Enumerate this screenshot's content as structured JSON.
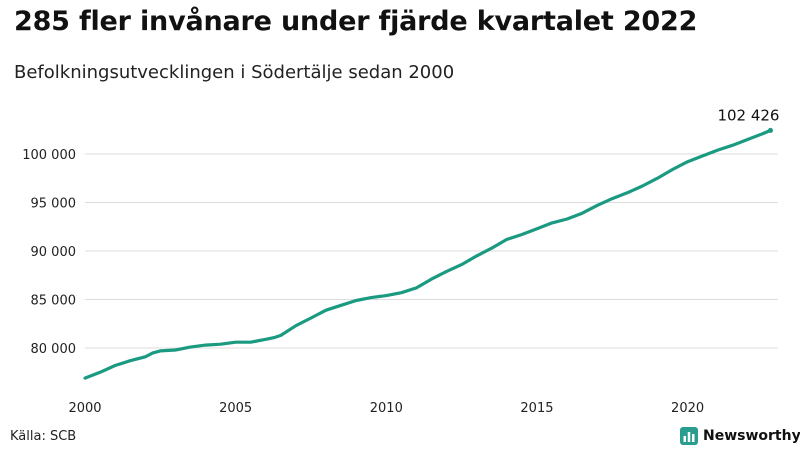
{
  "header": {
    "title": "285 fler invånare under fjärde kvartalet 2022",
    "subtitle": "Befolkningsutvecklingen i Södertälje sedan 2000"
  },
  "footer": {
    "source": "Källa: SCB",
    "brand": "Newsworthy",
    "brand_icon": "bar-chart-icon",
    "brand_color": "#2a9d8f"
  },
  "chart_data": {
    "type": "line",
    "title": "285 fler invånare under fjärde kvartalet 2022",
    "subtitle": "Befolkningsutvecklingen i Södertälje sedan 2000",
    "xlabel": "",
    "ylabel": "",
    "xlim": [
      2000,
      2023
    ],
    "ylim": [
      76500,
      103500
    ],
    "x_ticks": [
      2000,
      2005,
      2010,
      2015,
      2020
    ],
    "x_tick_labels": [
      "2000",
      "2005",
      "2010",
      "2015",
      "2020"
    ],
    "y_ticks": [
      80000,
      85000,
      90000,
      95000,
      100000
    ],
    "y_tick_labels": [
      "80 000",
      "85 000",
      "90 000",
      "95 000",
      "100 000"
    ],
    "grid": "horizontal",
    "line_color": "#1b9a82",
    "end_label": "102 426",
    "series": [
      {
        "x": [
          2000,
          2000.5,
          2001,
          2001.5,
          2002,
          2002.25,
          2002.5,
          2003,
          2003.5,
          2004,
          2004.5,
          2005,
          2005.5,
          2006,
          2006.3,
          2006.5,
          2007,
          2007.5,
          2008,
          2008.5,
          2009,
          2009.5,
          2010,
          2010.5,
          2011,
          2011.5,
          2012,
          2012.5,
          2013,
          2013.5,
          2014,
          2014.5,
          2015,
          2015.5,
          2016,
          2016.5,
          2017,
          2017.5,
          2018,
          2018.5,
          2019,
          2019.5,
          2020,
          2020.5,
          2021,
          2021.5,
          2022,
          2022.5,
          2022.75
        ],
        "y": [
          76900,
          77500,
          78200,
          78700,
          79100,
          79500,
          79700,
          79800,
          80100,
          80300,
          80400,
          80600,
          80600,
          80900,
          81100,
          81300,
          82300,
          83100,
          83900,
          84400,
          84900,
          85200,
          85400,
          85700,
          86200,
          87100,
          87900,
          88600,
          89500,
          90300,
          91200,
          91700,
          92300,
          92900,
          93300,
          93900,
          94700,
          95400,
          96000,
          96700,
          97500,
          98400,
          99200,
          99800,
          100400,
          100900,
          101500,
          102100,
          102426
        ]
      }
    ]
  }
}
